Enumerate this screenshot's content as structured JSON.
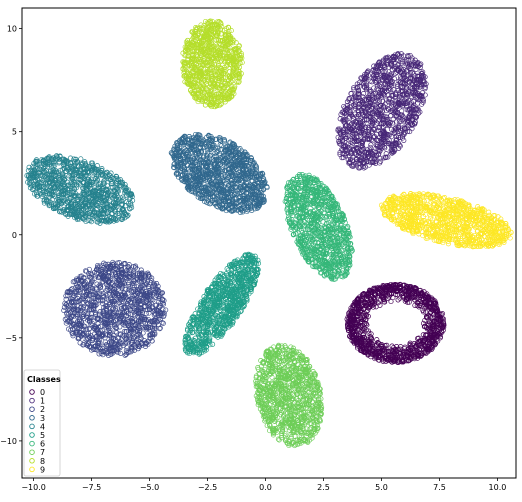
{
  "chart_data": {
    "type": "scatter",
    "title": "",
    "xlabel": "",
    "ylabel": "",
    "xlim": [
      -10.5,
      10.8
    ],
    "ylim": [
      -11.8,
      11.0
    ],
    "x_ticks": [
      -10.0,
      -7.5,
      -5.0,
      -2.5,
      0.0,
      2.5,
      5.0,
      7.5,
      10.0
    ],
    "x_tick_labels": [
      "−10.0",
      "−7.5",
      "−5.0",
      "−2.5",
      "0.0",
      "2.5",
      "5.0",
      "7.5",
      "10.0"
    ],
    "y_ticks": [
      -10,
      -5,
      0,
      5,
      10
    ],
    "y_tick_labels": [
      "−10",
      "−5",
      "0",
      "5",
      "10"
    ],
    "grid": false,
    "marker": "open-circle",
    "legend": {
      "title": "Classes",
      "placement": "bottom-left",
      "entries": [
        "0",
        "1",
        "2",
        "3",
        "4",
        "5",
        "6",
        "7",
        "8",
        "9"
      ]
    },
    "series": [
      {
        "name": "0",
        "color": "#440154",
        "cluster": {
          "cx": 5.6,
          "cy": -4.3,
          "rx": 2.1,
          "ry": 1.9,
          "angle": 0,
          "shape": "ring"
        },
        "n": 1100
      },
      {
        "name": "1",
        "color": "#482878",
        "cluster": {
          "cx": 5.0,
          "cy": 6.0,
          "rx": 1.6,
          "ry": 3.0,
          "angle": -25,
          "shape": "ellipse"
        },
        "n": 1100
      },
      {
        "name": "2",
        "color": "#3e4989",
        "cluster": {
          "cx": -6.5,
          "cy": -3.6,
          "rx": 2.2,
          "ry": 2.3,
          "angle": 0,
          "shape": "ellipse"
        },
        "n": 1200
      },
      {
        "name": "3",
        "color": "#31688e",
        "cluster": {
          "cx": -2.0,
          "cy": 3.0,
          "rx": 2.4,
          "ry": 1.5,
          "angle": -40,
          "shape": "ellipse"
        },
        "n": 1200
      },
      {
        "name": "4",
        "color": "#26828e",
        "cluster": {
          "cx": -8.0,
          "cy": 2.2,
          "rx": 2.5,
          "ry": 1.4,
          "angle": -25,
          "shape": "ellipse"
        },
        "n": 1000
      },
      {
        "name": "5",
        "color": "#1f9e89",
        "cluster": {
          "cx": -1.9,
          "cy": -3.4,
          "rx": 0.9,
          "ry": 2.8,
          "angle": -30,
          "shape": "ellipse"
        },
        "n": 900
      },
      {
        "name": "6",
        "color": "#35b779",
        "cluster": {
          "cx": 2.3,
          "cy": 0.4,
          "rx": 1.2,
          "ry": 2.7,
          "angle": 20,
          "shape": "ellipse"
        },
        "n": 1000
      },
      {
        "name": "7",
        "color": "#6ece58",
        "cluster": {
          "cx": 1.0,
          "cy": -7.8,
          "rx": 1.4,
          "ry": 2.5,
          "angle": 10,
          "shape": "ellipse"
        },
        "n": 1000
      },
      {
        "name": "8",
        "color": "#b5de2b",
        "cluster": {
          "cx": -2.3,
          "cy": 8.3,
          "rx": 1.3,
          "ry": 2.1,
          "angle": 0,
          "shape": "ellipse"
        },
        "n": 900
      },
      {
        "name": "9",
        "color": "#fde725",
        "cluster": {
          "cx": 7.8,
          "cy": 0.7,
          "rx": 2.9,
          "ry": 1.1,
          "angle": -15,
          "shape": "ellipse"
        },
        "n": 1000
      }
    ]
  }
}
